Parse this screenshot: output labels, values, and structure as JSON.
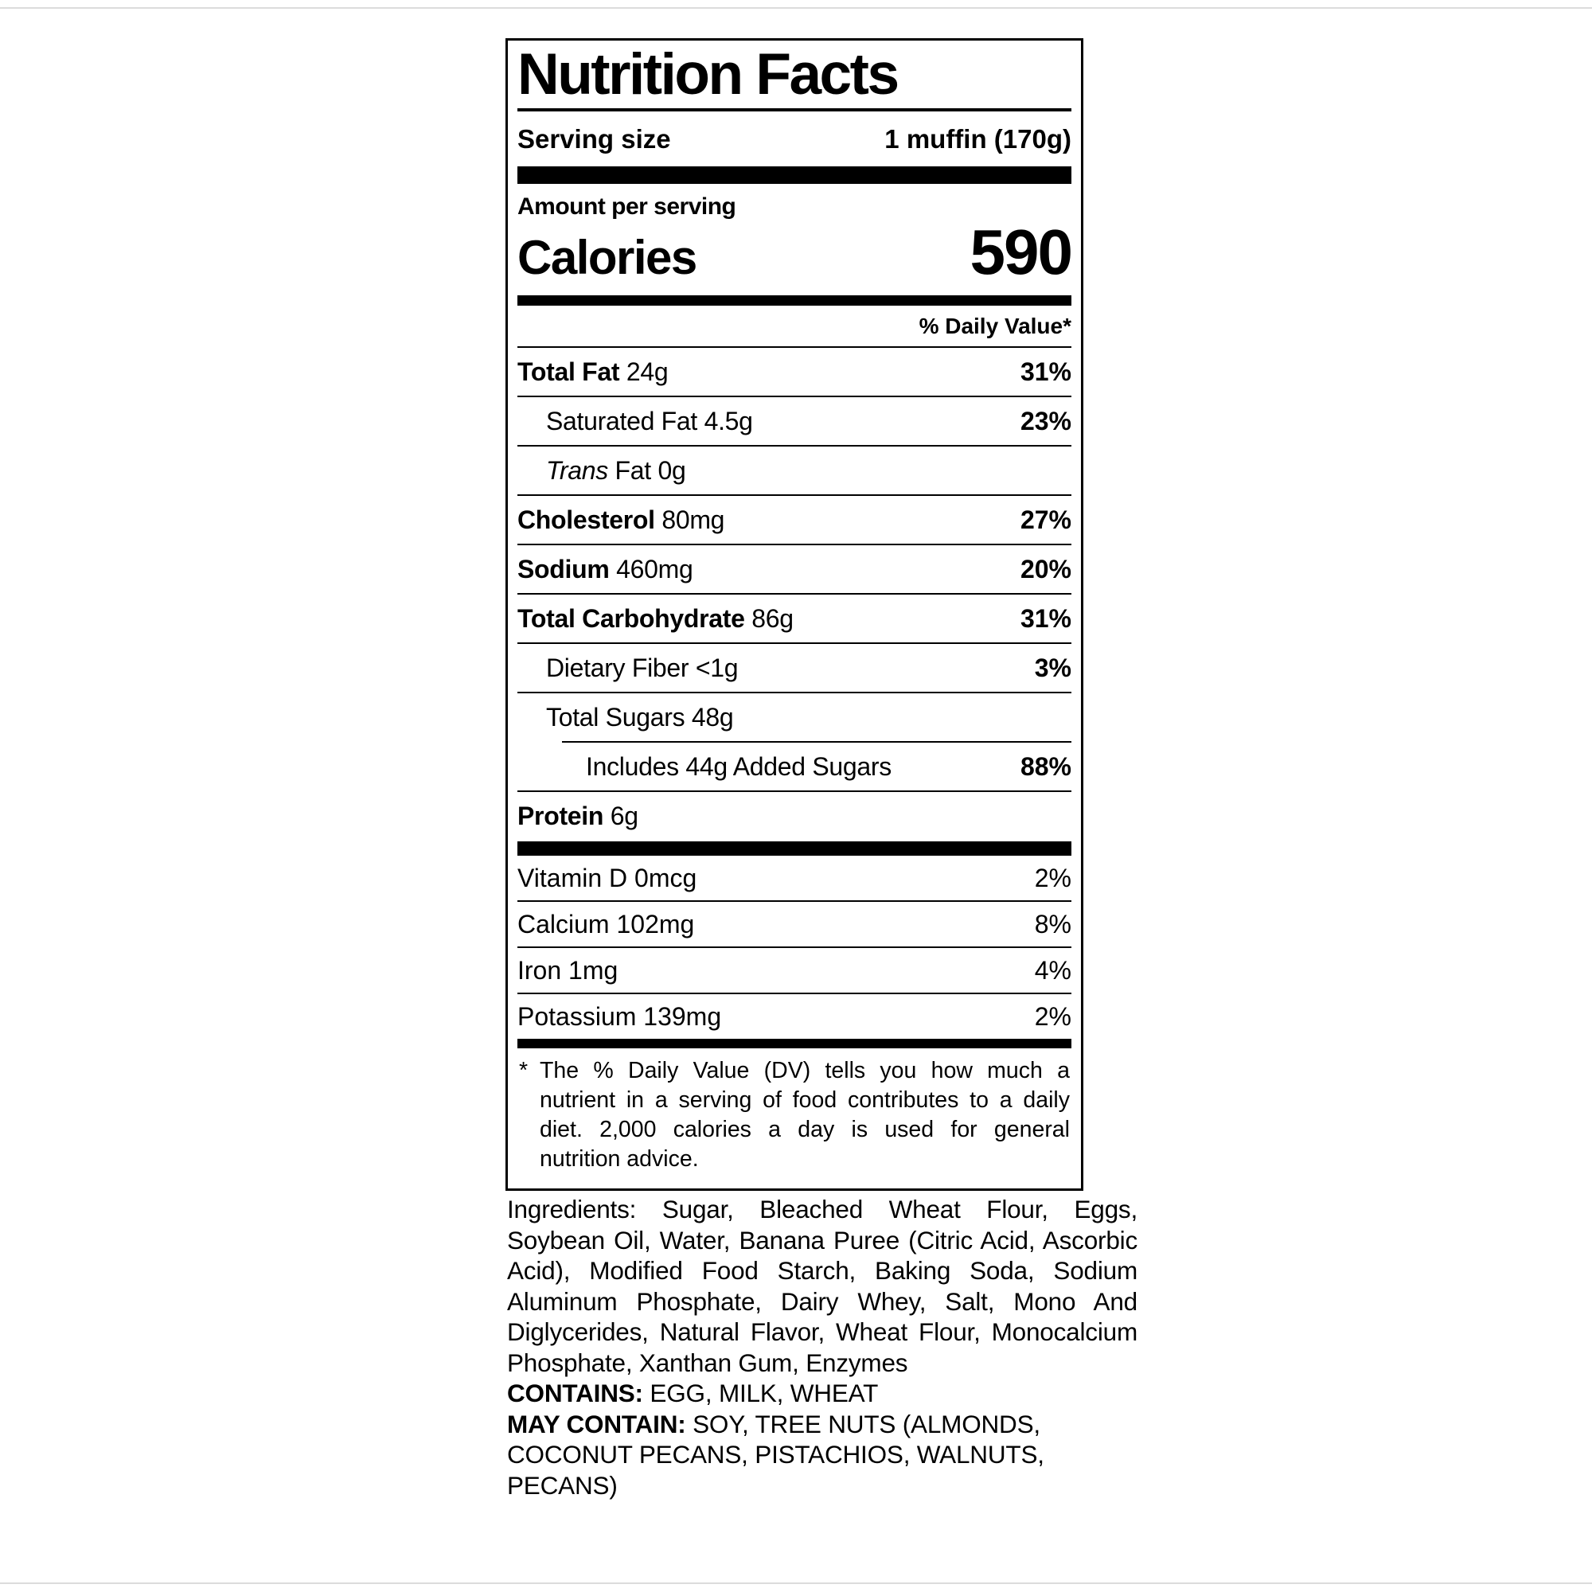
{
  "label": {
    "title": "Nutrition Facts",
    "serving": {
      "label": "Serving size",
      "value": "1 muffin (170g)"
    },
    "amount_per_serving": "Amount per serving",
    "calories": {
      "label": "Calories",
      "value": "590"
    },
    "daily_value_header": "% Daily Value*",
    "nutrients": [
      {
        "bold": "Total Fat",
        "italic": "",
        "plain": "",
        "amount": "24g",
        "dv": "31%"
      },
      {
        "bold": "",
        "italic": "",
        "plain": "Saturated Fat",
        "amount": "4.5g",
        "dv": "23%"
      },
      {
        "bold": "",
        "italic": "Trans",
        "plain": "Fat",
        "amount": "0g",
        "dv": ""
      },
      {
        "bold": "Cholesterol",
        "italic": "",
        "plain": "",
        "amount": "80mg",
        "dv": "27%"
      },
      {
        "bold": "Sodium",
        "italic": "",
        "plain": "",
        "amount": "460mg",
        "dv": "20%"
      },
      {
        "bold": "Total Carbohydrate",
        "italic": "",
        "plain": "",
        "amount": "86g",
        "dv": "31%"
      },
      {
        "bold": "",
        "italic": "",
        "plain": "Dietary Fiber",
        "amount": "<1g",
        "dv": "3%"
      },
      {
        "bold": "",
        "italic": "",
        "plain": "Total Sugars",
        "amount": "48g",
        "dv": ""
      },
      {
        "bold": "",
        "italic": "",
        "plain": "Includes 44g Added Sugars",
        "amount": "",
        "dv": "88%"
      },
      {
        "bold": "Protein",
        "italic": "",
        "plain": "",
        "amount": "6g",
        "dv": ""
      }
    ],
    "vitamins": [
      {
        "name": "Vitamin D 0mcg",
        "dv": "2%"
      },
      {
        "name": "Calcium 102mg",
        "dv": "8%"
      },
      {
        "name": "Iron 1mg",
        "dv": "4%"
      },
      {
        "name": "Potassium 139mg",
        "dv": "2%"
      }
    ],
    "footnote_marker": "*",
    "footnote": "The % Daily Value (DV) tells you how much a nutrient in a serving of food contributes to a daily diet. 2,000 calories a day is used for general nutrition advice."
  },
  "ingredients": {
    "lead": "Ingredients:",
    "list": "Sugar, Bleached Wheat Flour, Eggs, Soybean Oil, Water, Banana Puree (Citric Acid, Ascorbic Acid), Modified Food Starch, Baking Soda, Sodium Aluminum Phosphate, Dairy Whey, Salt, Mono And Diglycerides, Natural Flavor, Wheat Flour, Monocalcium Phosphate, Xanthan Gum, Enzymes",
    "contains_label": "CONTAINS:",
    "contains_value": "EGG, MILK, WHEAT",
    "may_contain_label": "MAY CONTAIN:",
    "may_contain_value": "SOY, TREE NUTS (ALMONDS, COCONUT PECANS, PISTACHIOS, WALNUTS, PECANS)"
  }
}
